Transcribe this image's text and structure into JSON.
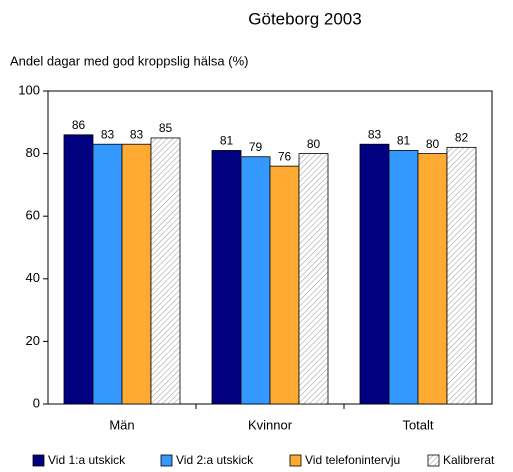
{
  "chart_data": {
    "type": "bar",
    "title": "Göteborg 2003",
    "y_label": "Andel dagar med god kroppslig hälsa (%)",
    "categories": [
      "Män",
      "Kvinnor",
      "Totalt"
    ],
    "series": [
      {
        "name": "Vid 1:a utskick",
        "color": "#000080",
        "values": [
          86,
          81,
          83
        ]
      },
      {
        "name": "Vid 2:a utskick",
        "color": "#3399ff",
        "values": [
          83,
          79,
          81
        ]
      },
      {
        "name": "Vid telefonintervju",
        "color": "#ffaa33",
        "values": [
          83,
          76,
          80
        ]
      },
      {
        "name": "Kalibrerat",
        "color": "#ffffff",
        "hatch": true,
        "values": [
          85,
          80,
          82
        ]
      }
    ],
    "ylim": [
      0,
      100
    ],
    "yticks": [
      0,
      20,
      40,
      60,
      80,
      100
    ],
    "grid": false
  }
}
